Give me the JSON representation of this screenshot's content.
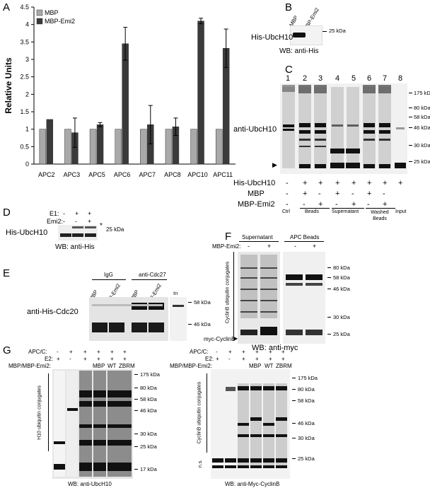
{
  "panels": {
    "A": "A",
    "B": "B",
    "C": "C",
    "D": "D",
    "E": "E",
    "F": "F",
    "G": "G"
  },
  "chart_data": {
    "type": "bar",
    "categories": [
      "APC2",
      "APC3",
      "APC5",
      "APC6",
      "APC7",
      "APC8",
      "APC10",
      "APC11"
    ],
    "series": [
      {
        "name": "MBP",
        "values": [
          1,
          1,
          1,
          1,
          1,
          1,
          1,
          1
        ],
        "errors": [
          0,
          0,
          0,
          0,
          0,
          0,
          0,
          0
        ],
        "color": "#a9a9a9"
      },
      {
        "name": "MBP-Emi2",
        "values": [
          1.28,
          0.9,
          1.13,
          3.45,
          1.13,
          1.07,
          4.1,
          3.32
        ],
        "errors": [
          0,
          0.42,
          0.06,
          0.47,
          0.55,
          0.25,
          0.08,
          0.55
        ],
        "color": "#3a3a3a"
      }
    ],
    "ylabel": "Relative Units",
    "ylim": [
      0,
      4.5
    ],
    "yticks": [
      "0",
      "0.5",
      "1",
      "1.5",
      "2",
      "2.5",
      "3",
      "3.5",
      "4",
      "4.5"
    ],
    "legend": "top-left"
  },
  "B": {
    "lanes": [
      "MBP",
      "MBP-Emi2"
    ],
    "row": "His-UbcH10",
    "marker": "25 kDa",
    "wb": "WB: anti-His"
  },
  "C": {
    "lanes": [
      "1",
      "2",
      "3",
      "4",
      "5",
      "6",
      "7",
      "8"
    ],
    "markers": [
      "175 kDa",
      "80 kDa",
      "58 kDa",
      "46 kDa",
      "30 kDa",
      "25 kDa"
    ],
    "band_label": "anti-UbcH10",
    "rows": [
      {
        "label": "His-UbcH10",
        "signs": [
          "-",
          "+",
          "+",
          "+",
          "+",
          "+",
          "+",
          "+"
        ]
      },
      {
        "label": "MBP",
        "signs": [
          "-",
          "+",
          "-",
          "+",
          "-",
          "+",
          "-",
          ""
        ]
      },
      {
        "label": "MBP-Emi2",
        "signs": [
          "-",
          "-",
          "+",
          "-",
          "+",
          "-",
          "+",
          ""
        ]
      }
    ],
    "groups": [
      "Ctrl",
      "Beads",
      "Supernatant",
      "Washed Beads",
      "Input"
    ]
  },
  "D": {
    "rows": [
      {
        "label": "E1:",
        "signs": [
          "-",
          "+",
          "+"
        ]
      },
      {
        "label": "Emi2:",
        "signs": [
          "-",
          "-",
          "+"
        ]
      }
    ],
    "row": "His-UbcH10",
    "star": "*",
    "marker": "25 kDa",
    "wb": "WB: anti-His"
  },
  "E": {
    "groups": [
      "IgG",
      "anti-Cdc27"
    ],
    "lanes": [
      "MBP",
      "MBP-Emi2",
      "MBP",
      "MBP-Emi2",
      "In"
    ],
    "row": "anti-His-Cdc20",
    "markers": [
      "58 kDa",
      "46 kDa"
    ]
  },
  "F": {
    "groups": [
      "Supernatant",
      "APC Beads"
    ],
    "emi_label": "MBP-Emi2:",
    "signs": [
      "-",
      "+",
      "-",
      "+"
    ],
    "side_label": "CyclinB ubiquitin conjugates",
    "myc_label": "myc-CyclinB",
    "markers": [
      "80 kDa",
      "58 kDa",
      "46 kDa",
      "30 kDa",
      "25 kDa"
    ],
    "wb": "WB: anti-myc"
  },
  "G": {
    "rows": [
      {
        "label": "APC/C:",
        "signs": [
          "-",
          "+",
          "+",
          "+",
          "+",
          "+"
        ]
      },
      {
        "label": "E2:",
        "signs": [
          "+",
          "-",
          "+",
          "+",
          "+",
          "+"
        ]
      }
    ],
    "mbp_label": "MBP/MBP-Emi2:",
    "lanes3": [
      "MBP",
      "WT",
      "ZBRM"
    ],
    "left_side": "H10 ubiquitin conjugates",
    "left_markers": [
      "175 kDa",
      "80 kDa",
      "58 kDa",
      "46 kDa",
      "30 kDa",
      "25 kDa",
      "17 kDa"
    ],
    "left_wb": "WB: anti-UbcH10",
    "right_side": "CyclinB ubiquitin conjugates",
    "right_ns": "n.s.",
    "right_markers": [
      "175 kDa",
      "80 kDa",
      "58 kDa",
      "46 kDa",
      "30 kDa",
      "25 kDa"
    ],
    "right_wb": "WB: anti-Myc-CyclinB"
  }
}
